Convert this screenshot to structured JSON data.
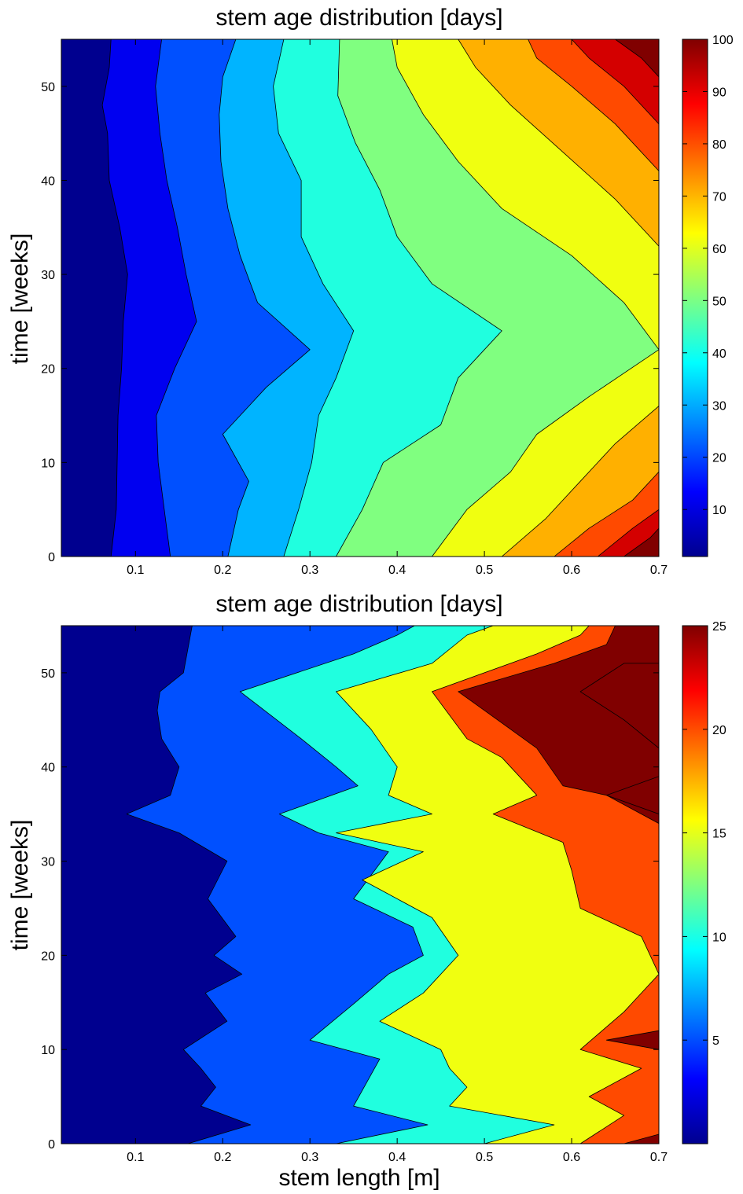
{
  "chart_data": [
    {
      "type": "contour",
      "title": "stem age distribution [days]",
      "xlabel": "",
      "ylabel": "time [weeks]",
      "xlim": [
        0.015,
        0.7
      ],
      "ylim": [
        0,
        55
      ],
      "xticks": [
        "0.1",
        "0.2",
        "0.3",
        "0.4",
        "0.5",
        "0.6",
        "0.7"
      ],
      "yticks": [
        "0",
        "10",
        "20",
        "30",
        "40",
        "50"
      ],
      "colorbar": {
        "range": [
          1,
          100
        ],
        "ticks": [
          "10",
          "20",
          "30",
          "40",
          "50",
          "60",
          "70",
          "80",
          "90",
          "100"
        ]
      },
      "levels": [
        {
          "value": 1,
          "color": "#00008f"
        },
        {
          "value": 12,
          "color": "#0000f0"
        },
        {
          "value": 23,
          "color": "#0050ff"
        },
        {
          "value": 34,
          "color": "#00b4ff"
        },
        {
          "value": 45,
          "color": "#20ffdf"
        },
        {
          "value": 56,
          "color": "#80ff80"
        },
        {
          "value": 67,
          "color": "#f0ff10"
        },
        {
          "value": 78,
          "color": "#ffb000"
        },
        {
          "value": 89,
          "color": "#ff4a00"
        },
        {
          "value": 100,
          "color": "#d40000"
        },
        {
          "value": 110,
          "color": "#800000"
        }
      ],
      "boundaries": [
        [
          [
            0.072,
            0
          ],
          [
            0.078,
            5
          ],
          [
            0.079,
            10
          ],
          [
            0.08,
            15
          ],
          [
            0.084,
            20
          ],
          [
            0.086,
            25
          ],
          [
            0.091,
            30
          ],
          [
            0.082,
            35
          ],
          [
            0.07,
            40
          ],
          [
            0.068,
            45
          ],
          [
            0.062,
            48
          ],
          [
            0.07,
            52
          ],
          [
            0.072,
            55
          ]
        ],
        [
          [
            0.14,
            0
          ],
          [
            0.133,
            5
          ],
          [
            0.126,
            10
          ],
          [
            0.124,
            15
          ],
          [
            0.145,
            20
          ],
          [
            0.17,
            25
          ],
          [
            0.158,
            30
          ],
          [
            0.148,
            35
          ],
          [
            0.136,
            40
          ],
          [
            0.128,
            45
          ],
          [
            0.123,
            50
          ],
          [
            0.13,
            55
          ]
        ],
        [
          [
            0.206,
            0
          ],
          [
            0.218,
            5
          ],
          [
            0.23,
            8
          ],
          [
            0.2,
            13
          ],
          [
            0.25,
            18
          ],
          [
            0.3,
            22
          ],
          [
            0.24,
            27
          ],
          [
            0.22,
            32
          ],
          [
            0.206,
            37
          ],
          [
            0.198,
            42
          ],
          [
            0.196,
            47
          ],
          [
            0.2,
            51
          ],
          [
            0.215,
            55
          ]
        ],
        [
          [
            0.27,
            0
          ],
          [
            0.287,
            5
          ],
          [
            0.302,
            10
          ],
          [
            0.31,
            15
          ],
          [
            0.33,
            19
          ],
          [
            0.35,
            24
          ],
          [
            0.315,
            29
          ],
          [
            0.29,
            34
          ],
          [
            0.29,
            40
          ],
          [
            0.264,
            45
          ],
          [
            0.258,
            50
          ],
          [
            0.27,
            55
          ]
        ],
        [
          [
            0.33,
            0
          ],
          [
            0.36,
            5
          ],
          [
            0.384,
            10
          ],
          [
            0.45,
            14
          ],
          [
            0.47,
            19
          ],
          [
            0.52,
            24
          ],
          [
            0.44,
            29
          ],
          [
            0.4,
            34
          ],
          [
            0.38,
            39
          ],
          [
            0.352,
            44
          ],
          [
            0.332,
            49
          ],
          [
            0.334,
            55
          ]
        ],
        [
          [
            0.44,
            0
          ],
          [
            0.48,
            5
          ],
          [
            0.53,
            9
          ],
          [
            0.56,
            13
          ],
          [
            0.62,
            17
          ],
          [
            0.7,
            22
          ],
          [
            0.66,
            27
          ],
          [
            0.6,
            32
          ],
          [
            0.52,
            37
          ],
          [
            0.47,
            42
          ],
          [
            0.43,
            47
          ],
          [
            0.4,
            52
          ],
          [
            0.394,
            55
          ]
        ],
        [
          [
            0.52,
            0
          ],
          [
            0.57,
            4
          ],
          [
            0.61,
            8
          ],
          [
            0.65,
            12
          ],
          [
            0.7,
            16
          ],
          [
            0.7,
            33
          ],
          [
            0.65,
            38
          ],
          [
            0.59,
            43
          ],
          [
            0.53,
            48
          ],
          [
            0.49,
            52
          ],
          [
            0.47,
            55
          ]
        ],
        [
          [
            0.58,
            0
          ],
          [
            0.62,
            3
          ],
          [
            0.67,
            6
          ],
          [
            0.7,
            9
          ],
          [
            0.7,
            41
          ],
          [
            0.65,
            46
          ],
          [
            0.6,
            50
          ],
          [
            0.56,
            53
          ],
          [
            0.55,
            55
          ]
        ],
        [
          [
            0.63,
            0
          ],
          [
            0.67,
            3
          ],
          [
            0.7,
            5
          ],
          [
            0.7,
            46
          ],
          [
            0.66,
            50
          ],
          [
            0.62,
            53
          ],
          [
            0.6,
            55
          ]
        ],
        [
          [
            0.66,
            0
          ],
          [
            0.69,
            2
          ],
          [
            0.7,
            3
          ],
          [
            0.7,
            51
          ],
          [
            0.68,
            53
          ],
          [
            0.65,
            55
          ]
        ]
      ]
    },
    {
      "type": "contour",
      "title": "stem age distribution [days]",
      "xlabel": "stem length [m]",
      "ylabel": "time [weeks]",
      "xlim": [
        0.015,
        0.7
      ],
      "ylim": [
        0,
        55
      ],
      "xticks": [
        "0.1",
        "0.2",
        "0.3",
        "0.4",
        "0.5",
        "0.6",
        "0.7"
      ],
      "yticks": [
        "0",
        "10",
        "20",
        "30",
        "40",
        "50"
      ],
      "colorbar": {
        "range": [
          0,
          25
        ],
        "ticks": [
          "5",
          "10",
          "15",
          "20",
          "25"
        ]
      },
      "levels": [
        {
          "value": 0,
          "color": "#00008f"
        },
        {
          "value": 5,
          "color": "#0050ff"
        },
        {
          "value": 10,
          "color": "#20ffdf"
        },
        {
          "value": 15,
          "color": "#f0ff10"
        },
        {
          "value": 20,
          "color": "#ff4a00"
        },
        {
          "value": 25,
          "color": "#800000"
        }
      ],
      "boundaries": [
        [
          [
            0.16,
            0
          ],
          [
            0.232,
            2
          ],
          [
            0.175,
            4
          ],
          [
            0.192,
            6
          ],
          [
            0.175,
            8
          ],
          [
            0.155,
            10
          ],
          [
            0.205,
            13
          ],
          [
            0.18,
            16
          ],
          [
            0.222,
            18
          ],
          [
            0.19,
            20
          ],
          [
            0.215,
            22
          ],
          [
            0.183,
            26
          ],
          [
            0.205,
            30
          ],
          [
            0.15,
            33
          ],
          [
            0.09,
            35
          ],
          [
            0.14,
            37
          ],
          [
            0.15,
            40
          ],
          [
            0.13,
            43
          ],
          [
            0.125,
            46
          ],
          [
            0.128,
            48
          ],
          [
            0.155,
            50
          ],
          [
            0.165,
            55
          ]
        ],
        [
          [
            0.33,
            0
          ],
          [
            0.435,
            2
          ],
          [
            0.35,
            4
          ],
          [
            0.38,
            9
          ],
          [
            0.3,
            11
          ],
          [
            0.352,
            15
          ],
          [
            0.39,
            18
          ],
          [
            0.43,
            20
          ],
          [
            0.418,
            23
          ],
          [
            0.35,
            26
          ],
          [
            0.39,
            31
          ],
          [
            0.31,
            33
          ],
          [
            0.265,
            35
          ],
          [
            0.355,
            38
          ],
          [
            0.33,
            40
          ],
          [
            0.29,
            43
          ],
          [
            0.22,
            48
          ],
          [
            0.35,
            52
          ],
          [
            0.4,
            54
          ],
          [
            0.42,
            55
          ]
        ],
        [
          [
            0.5,
            0
          ],
          [
            0.58,
            2
          ],
          [
            0.46,
            4
          ],
          [
            0.48,
            6
          ],
          [
            0.46,
            8
          ],
          [
            0.45,
            10
          ],
          [
            0.38,
            13
          ],
          [
            0.43,
            16
          ],
          [
            0.47,
            20
          ],
          [
            0.44,
            24
          ],
          [
            0.36,
            28
          ],
          [
            0.43,
            31
          ],
          [
            0.33,
            33
          ],
          [
            0.44,
            35
          ],
          [
            0.39,
            37
          ],
          [
            0.4,
            40
          ],
          [
            0.37,
            44
          ],
          [
            0.33,
            48
          ],
          [
            0.44,
            51
          ],
          [
            0.48,
            54
          ],
          [
            0.51,
            55
          ]
        ],
        [
          [
            0.61,
            0
          ],
          [
            0.66,
            3
          ],
          [
            0.62,
            5
          ],
          [
            0.68,
            8
          ],
          [
            0.61,
            10
          ],
          [
            0.66,
            14
          ],
          [
            0.7,
            18
          ],
          [
            0.68,
            22
          ],
          [
            0.61,
            25
          ],
          [
            0.6,
            29
          ],
          [
            0.59,
            32
          ],
          [
            0.51,
            35
          ],
          [
            0.56,
            37
          ],
          [
            0.52,
            41
          ],
          [
            0.48,
            43
          ],
          [
            0.44,
            48
          ],
          [
            0.56,
            52
          ],
          [
            0.61,
            54
          ],
          [
            0.62,
            55
          ]
        ],
        [
          [
            0.66,
            0
          ],
          [
            0.7,
            1
          ],
          [
            0.7,
            10
          ],
          [
            0.64,
            11
          ],
          [
            0.7,
            12
          ],
          [
            0.7,
            34
          ],
          [
            0.64,
            37
          ],
          [
            0.59,
            38
          ],
          [
            0.56,
            42
          ],
          [
            0.5,
            46
          ],
          [
            0.47,
            48
          ],
          [
            0.58,
            51
          ],
          [
            0.64,
            53
          ],
          [
            0.65,
            55
          ]
        ],
        [
          [
            0.7,
            35
          ],
          [
            0.64,
            37
          ],
          [
            0.7,
            39
          ],
          [
            0.7,
            42
          ],
          [
            0.66,
            45
          ],
          [
            0.61,
            48
          ],
          [
            0.66,
            51
          ],
          [
            0.7,
            51
          ]
        ]
      ]
    }
  ]
}
